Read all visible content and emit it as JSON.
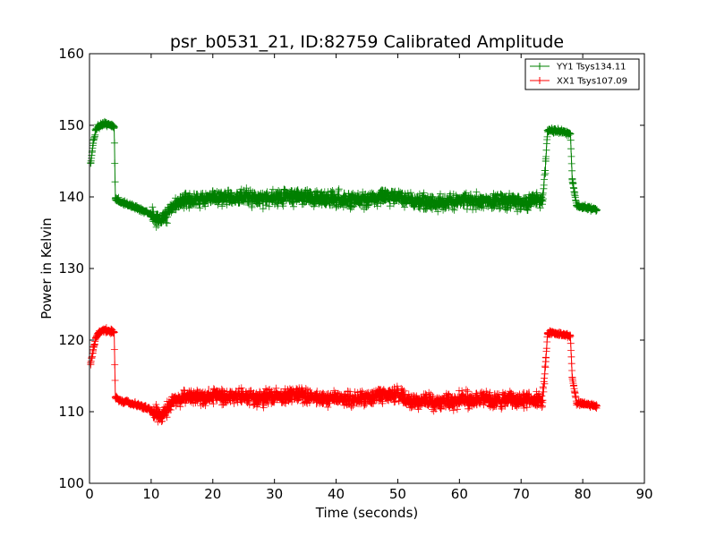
{
  "chart_data": {
    "type": "line",
    "title": "psr_b0531_21, ID:82759 Calibrated Amplitude",
    "xlabel": "Time (seconds)",
    "ylabel": "Power in Kelvin",
    "xlim": [
      0,
      90
    ],
    "ylim": [
      100,
      160
    ],
    "xticks": [
      0,
      10,
      20,
      30,
      40,
      50,
      60,
      70,
      80,
      90
    ],
    "yticks": [
      100,
      110,
      120,
      130,
      140,
      150,
      160
    ],
    "xtick_labels": [
      "0",
      "10",
      "20",
      "30",
      "40",
      "50",
      "60",
      "70",
      "80",
      "90"
    ],
    "ytick_labels": [
      "100",
      "110",
      "120",
      "130",
      "140",
      "150",
      "160"
    ],
    "grid": false,
    "legend_position": "top-right",
    "marker": "plus",
    "series": [
      {
        "name": "YY1 Tsys134.11",
        "color": "#008000",
        "x": [
          0.2,
          0.6,
          1.0,
          1.5,
          2.0,
          2.5,
          3.0,
          3.5,
          4.0,
          4.2,
          5,
          6,
          7,
          8,
          9,
          10,
          10.5,
          11,
          11.5,
          12,
          12.5,
          13,
          14,
          15,
          16,
          18,
          20,
          22,
          24,
          26,
          28,
          30,
          32,
          34,
          36,
          38,
          40,
          42,
          44,
          46,
          48,
          50,
          52,
          54,
          56,
          58,
          60,
          62,
          64,
          66,
          68,
          70,
          72,
          73.5,
          74.0,
          74.3,
          75,
          76,
          77,
          78.0,
          78.3,
          79,
          80,
          81,
          82.3
        ],
        "values": [
          144.7,
          147.5,
          149.3,
          149.9,
          150.1,
          150.2,
          150.1,
          150.0,
          149.8,
          139.8,
          139.3,
          139.0,
          138.7,
          138.4,
          138.0,
          137.5,
          137.0,
          136.8,
          136.7,
          136.9,
          137.5,
          138.3,
          139.0,
          139.4,
          139.6,
          139.8,
          139.9,
          139.8,
          139.9,
          140.0,
          139.8,
          139.9,
          140.2,
          140.1,
          139.8,
          139.7,
          139.7,
          139.6,
          139.6,
          139.8,
          140.0,
          140.1,
          139.5,
          139.3,
          139.2,
          139.3,
          139.4,
          139.5,
          139.5,
          139.4,
          139.4,
          139.3,
          139.5,
          139.4,
          145.0,
          149.3,
          149.3,
          149.2,
          149.0,
          148.8,
          142.4,
          138.8,
          138.6,
          138.5,
          138.2
        ]
      },
      {
        "name": "XX1 Tsys107.09",
        "color": "#ff0000",
        "x": [
          0.2,
          0.6,
          1.0,
          1.5,
          2.0,
          2.5,
          3.0,
          3.5,
          4.0,
          4.2,
          5,
          6,
          7,
          8,
          9,
          10,
          10.5,
          11,
          11.5,
          12,
          12.5,
          13,
          14,
          15,
          16,
          18,
          20,
          22,
          24,
          26,
          28,
          30,
          32,
          34,
          36,
          38,
          40,
          42,
          44,
          46,
          48,
          50,
          52,
          54,
          56,
          58,
          60,
          62,
          64,
          66,
          68,
          70,
          72,
          73.5,
          74.0,
          74.3,
          75,
          76,
          77,
          78.0,
          78.3,
          79,
          80,
          81,
          82.3
        ],
        "values": [
          116.8,
          118.5,
          120.3,
          121.0,
          121.3,
          121.4,
          121.3,
          121.2,
          121.1,
          112.0,
          111.6,
          111.4,
          111.1,
          110.9,
          110.6,
          110.2,
          109.7,
          109.5,
          109.4,
          109.6,
          110.2,
          110.9,
          111.5,
          111.8,
          112.0,
          112.1,
          112.2,
          112.0,
          112.1,
          112.1,
          111.9,
          112.0,
          112.4,
          112.3,
          112.0,
          111.9,
          111.9,
          111.8,
          111.8,
          112.1,
          112.4,
          112.5,
          111.6,
          111.4,
          111.3,
          111.4,
          111.5,
          111.7,
          111.8,
          111.7,
          111.7,
          111.6,
          111.8,
          111.6,
          117.0,
          121.0,
          121.0,
          120.9,
          120.7,
          120.6,
          114.8,
          111.2,
          111.1,
          111.0,
          110.8
        ]
      }
    ]
  }
}
